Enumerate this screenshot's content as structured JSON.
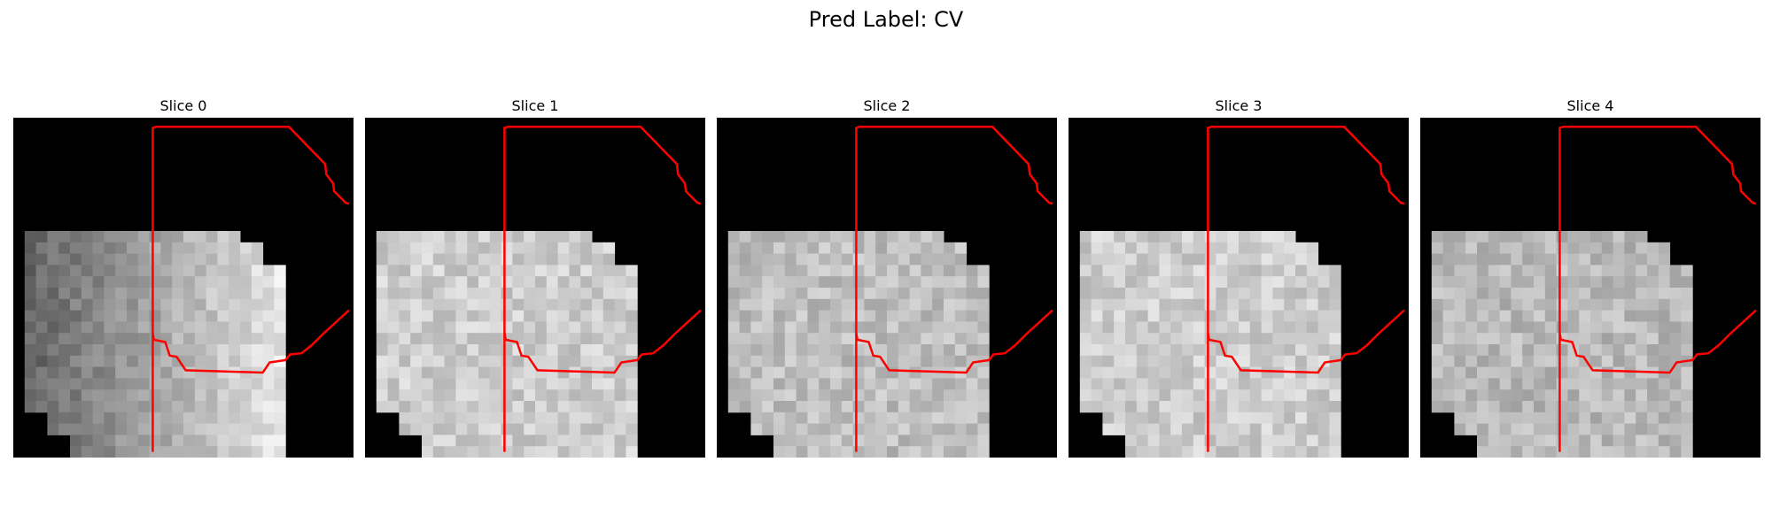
{
  "figure": {
    "title": "Pred Label: CV"
  },
  "panels": [
    {
      "title": "Slice 0",
      "seed": 11,
      "base": 150,
      "gradient": true
    },
    {
      "title": "Slice 1",
      "seed": 23,
      "base": 205,
      "gradient": false
    },
    {
      "title": "Slice 2",
      "seed": 37,
      "base": 190,
      "gradient": false
    },
    {
      "title": "Slice 3",
      "seed": 41,
      "base": 205,
      "gradient": false
    },
    {
      "title": "Slice 4",
      "seed": 53,
      "base": 185,
      "gradient": false
    }
  ],
  "colors": {
    "background": "#000000",
    "contour": "#ff0000"
  }
}
